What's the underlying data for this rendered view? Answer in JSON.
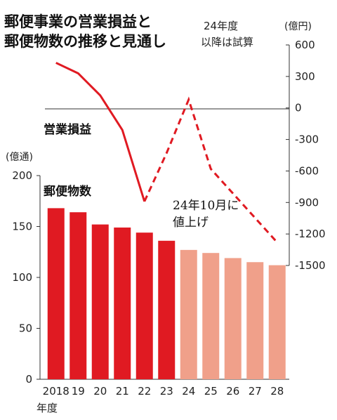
{
  "chart_data": {
    "type": "bar+line",
    "title_lines": [
      "郵便事業の営業損益と",
      "郵便物数の推移と見通し"
    ],
    "note_lines": [
      "24年度",
      "以降は試算"
    ],
    "categories": [
      "2018",
      "19",
      "20",
      "21",
      "22",
      "23",
      "24",
      "25",
      "26",
      "27",
      "28"
    ],
    "x_unit": "年度",
    "bars": {
      "name": "郵便物数",
      "unit": "(億通)",
      "ylim": [
        0,
        200
      ],
      "yticks": [
        0,
        50,
        100,
        150,
        200
      ],
      "values": [
        168,
        164,
        152,
        149,
        144,
        136,
        127,
        124,
        119,
        115,
        112
      ],
      "actual_color": "#e01a22",
      "forecast_color": "#f0a08a",
      "forecast_from_index": 6
    },
    "line": {
      "name": "営業損益",
      "unit": "(億円)",
      "ylim": [
        -1500,
        600
      ],
      "yticks": [
        600,
        300,
        0,
        -300,
        -600,
        -900,
        -1200,
        -1500
      ],
      "values": [
        430,
        330,
        120,
        -210,
        -890,
        -430,
        80,
        -580,
        -1280
      ],
      "x_points": [
        "2018",
        "19",
        "20",
        "21",
        "22",
        "23",
        "24",
        "25",
        "28"
      ],
      "color": "#e01a22",
      "actual_until_index": 4
    },
    "annotation_lines": [
      "24年10月に",
      "値上げ"
    ]
  }
}
